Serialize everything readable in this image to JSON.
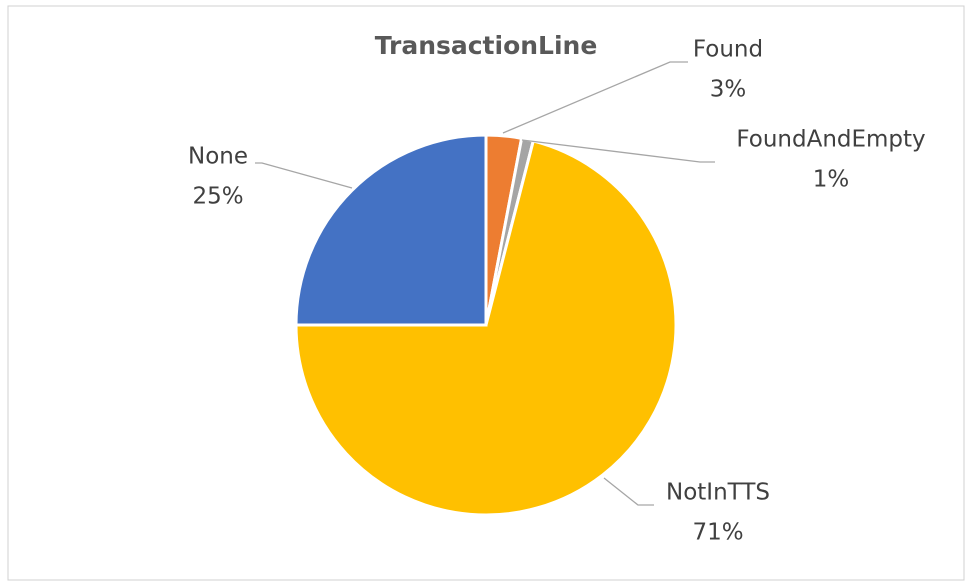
{
  "chart_data": {
    "type": "pie",
    "title": "TransactionLine",
    "categories": [
      "Found",
      "FoundAndEmpty",
      "NotInTTS",
      "None"
    ],
    "values": [
      3,
      1,
      71,
      25
    ],
    "value_labels": [
      "3%",
      "1%",
      "71%",
      "25%"
    ],
    "colors": [
      "#ED7D31",
      "#A5A5A5",
      "#FFC000",
      "#4472C4"
    ]
  }
}
